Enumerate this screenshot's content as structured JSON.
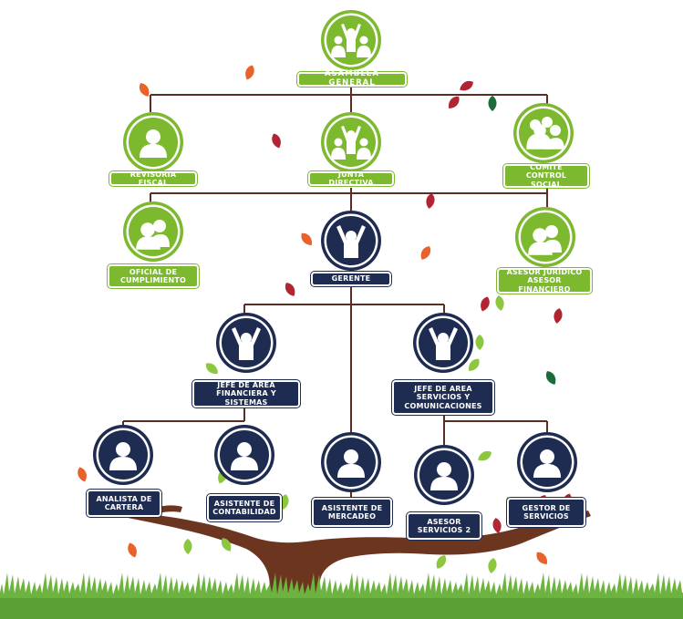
{
  "colors": {
    "green": "#7db92e",
    "navy": "#1e2c52",
    "connector": "#5a2e22",
    "trunk": "#6b3520",
    "grass": "#6cb33f",
    "leaf_red": "#b02434",
    "leaf_orange": "#e8622a",
    "leaf_green": "#8dc63f",
    "leaf_dark_green": "#1e6b3a"
  },
  "nodes": [
    {
      "id": "asamblea",
      "label": "ASAMBLEA GENERAL",
      "theme": "green",
      "icon": "group-raised-arms-icon"
    },
    {
      "id": "revisoria",
      "label": "REVISORIA FISCAL",
      "theme": "green",
      "icon": "person-icon"
    },
    {
      "id": "junta",
      "label": "JUNTA DIRECTIVA",
      "theme": "green",
      "icon": "group-raised-arms-icon"
    },
    {
      "id": "comite",
      "label": "COMITÉ CONTROL\nSOCIAL",
      "theme": "green",
      "icon": "group-icon"
    },
    {
      "id": "oficial",
      "label": "OFICIAL DE\nCUMPLIMIENTO",
      "theme": "green",
      "icon": "pair-icon"
    },
    {
      "id": "gerente",
      "label": "GERENTE",
      "theme": "navy",
      "icon": "person-raised-arms-icon"
    },
    {
      "id": "asesor_juridico",
      "label": "ASESOR JURÍDICO\nASESOR FINANCIERO",
      "theme": "green",
      "icon": "pair-icon"
    },
    {
      "id": "jefe_fin",
      "label": "JEFE DE AREA\nFINANCIERA Y SISTEMAS",
      "theme": "navy",
      "icon": "person-raised-arms-icon"
    },
    {
      "id": "jefe_serv",
      "label": "JEFE DE AREA\nSERVICIOS Y\nCOMUNICACIONES",
      "theme": "navy",
      "icon": "person-raised-arms-icon"
    },
    {
      "id": "analista",
      "label": "ANALISTA DE\nCARTERA",
      "theme": "navy",
      "icon": "person-icon"
    },
    {
      "id": "asist_cont",
      "label": "ASISTENTE DE\nCONTABILIDAD",
      "theme": "navy",
      "icon": "person-icon"
    },
    {
      "id": "asist_merc",
      "label": "ASISTENTE DE\nMERCADEO",
      "theme": "navy",
      "icon": "person-icon"
    },
    {
      "id": "asesor_serv",
      "label": "ASESOR\nSERVICIOS 2",
      "theme": "navy",
      "icon": "person-icon"
    },
    {
      "id": "gestor",
      "label": "GESTOR DE\nSERVICIOS",
      "theme": "navy",
      "icon": "person-icon"
    }
  ]
}
